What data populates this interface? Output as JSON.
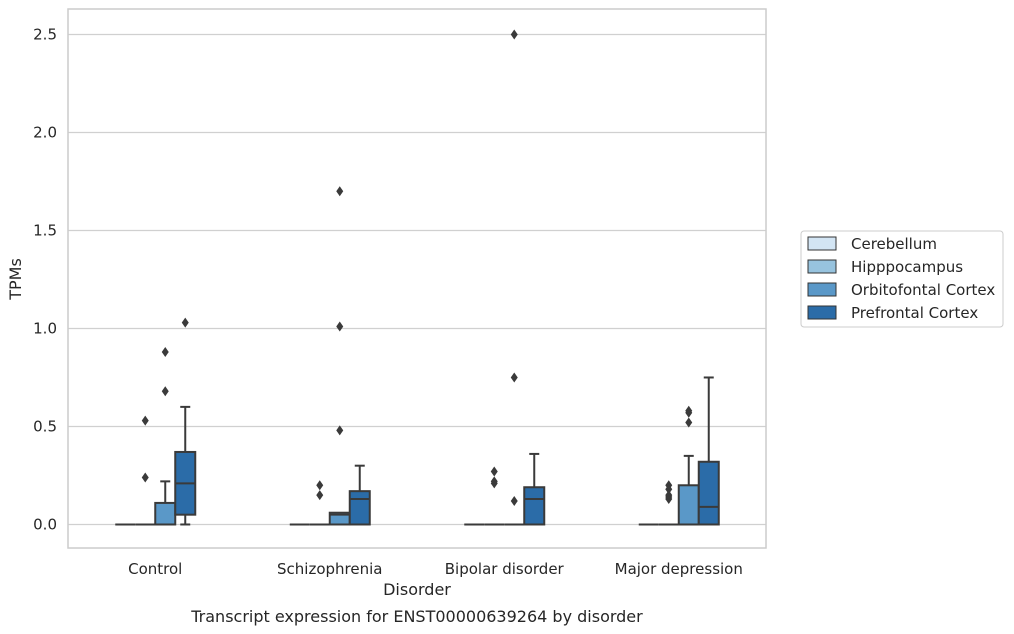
{
  "chart_data": {
    "type": "box",
    "title": "",
    "caption": "Transcript expression for ENST00000639264 by disorder",
    "xlabel": "Disorder",
    "ylabel": "TPMs",
    "ylim": [
      -0.12,
      2.63
    ],
    "yticks": [
      0.0,
      0.5,
      1.0,
      1.5,
      2.0,
      2.5
    ],
    "ytick_labels": [
      "0.0",
      "0.5",
      "1.0",
      "1.5",
      "2.0",
      "2.5"
    ],
    "grid": "horizontal",
    "legend_position": "right",
    "categories": [
      "Control",
      "Schizophrenia",
      "Bipolar disorder",
      "Major depression"
    ],
    "series": [
      {
        "name": "Cerebellum",
        "color": "#d3e5f4",
        "boxes": [
          {
            "q1": 0,
            "median": 0,
            "q3": 0,
            "whislo": 0,
            "whishi": 0,
            "fliers": []
          },
          {
            "q1": 0,
            "median": 0,
            "q3": 0,
            "whislo": 0,
            "whishi": 0,
            "fliers": []
          },
          {
            "q1": 0,
            "median": 0,
            "q3": 0,
            "whislo": 0,
            "whishi": 0,
            "fliers": []
          },
          {
            "q1": 0,
            "median": 0,
            "q3": 0,
            "whislo": 0,
            "whishi": 0,
            "fliers": []
          }
        ]
      },
      {
        "name": "Hipppocampus",
        "color": "#97c3de",
        "boxes": [
          {
            "q1": 0,
            "median": 0,
            "q3": 0,
            "whislo": 0,
            "whishi": 0,
            "fliers": [
              0.24,
              0.53
            ]
          },
          {
            "q1": 0,
            "median": 0,
            "q3": 0,
            "whislo": 0,
            "whishi": 0,
            "fliers": [
              0.15,
              0.2
            ]
          },
          {
            "q1": 0,
            "median": 0,
            "q3": 0,
            "whislo": 0,
            "whishi": 0,
            "fliers": [
              0.21,
              0.22,
              0.27
            ]
          },
          {
            "q1": 0,
            "median": 0,
            "q3": 0,
            "whislo": 0,
            "whishi": 0,
            "fliers": [
              0.13,
              0.14,
              0.15,
              0.18,
              0.2
            ]
          }
        ]
      },
      {
        "name": "Orbitofontal Cortex",
        "color": "#5a98c8",
        "boxes": [
          {
            "q1": 0,
            "median": 0,
            "q3": 0.11,
            "whislo": 0,
            "whishi": 0.22,
            "fliers": [
              0.68,
              0.88
            ]
          },
          {
            "q1": 0,
            "median": 0.05,
            "q3": 0.06,
            "whislo": 0,
            "whishi": 0.06,
            "fliers": [
              0.48,
              1.01,
              1.7
            ]
          },
          {
            "q1": 0,
            "median": 0,
            "q3": 0,
            "whislo": 0,
            "whishi": 0,
            "fliers": [
              0.12,
              0.75,
              2.5
            ]
          },
          {
            "q1": 0,
            "median": 0,
            "q3": 0.2,
            "whislo": 0,
            "whishi": 0.35,
            "fliers": [
              0.52,
              0.57,
              0.58
            ]
          }
        ]
      },
      {
        "name": "Prefrontal Cortex",
        "color": "#2b6ca8",
        "boxes": [
          {
            "q1": 0.05,
            "median": 0.21,
            "q3": 0.37,
            "whislo": 0,
            "whishi": 0.6,
            "fliers": [
              1.03
            ]
          },
          {
            "q1": 0,
            "median": 0.13,
            "q3": 0.17,
            "whislo": 0,
            "whishi": 0.3,
            "fliers": []
          },
          {
            "q1": 0,
            "median": 0.13,
            "q3": 0.19,
            "whislo": 0,
            "whishi": 0.36,
            "fliers": []
          },
          {
            "q1": 0,
            "median": 0.09,
            "q3": 0.32,
            "whislo": 0,
            "whishi": 0.75,
            "fliers": []
          }
        ]
      }
    ]
  }
}
